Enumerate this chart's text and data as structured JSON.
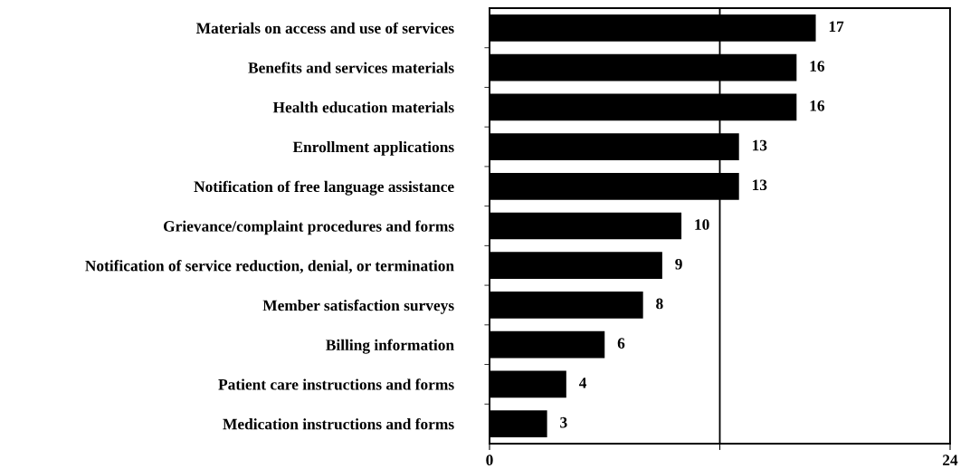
{
  "chart_data": {
    "type": "bar",
    "orientation": "horizontal",
    "categories": [
      "Materials on access and use of services",
      "Benefits and services materials",
      "Health education materials",
      "Enrollment applications",
      "Notification of free language assistance",
      "Grievance/complaint procedures and forms",
      "Notification of service reduction, denial, or termination",
      "Member satisfaction surveys",
      "Billing information",
      "Patient care instructions and forms",
      "Medication instructions and forms"
    ],
    "values": [
      17,
      16,
      16,
      13,
      13,
      10,
      9,
      8,
      6,
      4,
      3
    ],
    "color": "#000000",
    "xlim": [
      0,
      24
    ],
    "xticks": [
      0,
      {
        "value": 12,
        "label": null
      },
      24
    ],
    "grid": "x",
    "data_labels": true
  }
}
